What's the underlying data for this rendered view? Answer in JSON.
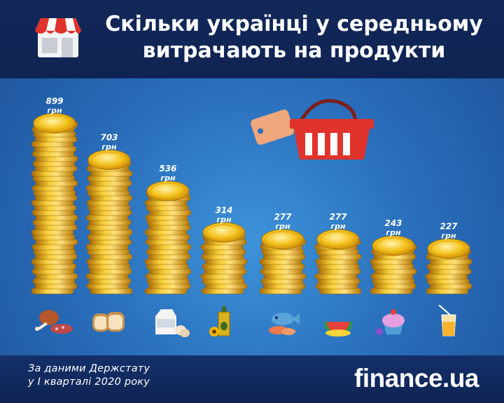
{
  "title_line1": "Скільки українці у середньому",
  "title_line2": "витрачають на продукти",
  "source_line1": "За даними Держстату",
  "source_line2": "у I кварталі 2020 року",
  "brand": "finance.ua",
  "colors": {
    "header_bg": "#0f2452",
    "background": "#2a6fbc",
    "coin": "#f2c215",
    "coin_edge": "#c98d06",
    "basket": "#e0332b"
  },
  "chart_data": {
    "type": "bar",
    "title": "Скільки українці у середньому витрачають на продукти",
    "unit": "грн",
    "categories": [
      "meat-icon",
      "bread-icon",
      "milk-icon",
      "oil-icon",
      "fish-icon",
      "fruit-icon",
      "sweets-icon",
      "drink-icon"
    ],
    "values": [
      899,
      703,
      536,
      314,
      277,
      277,
      243,
      227
    ],
    "value_labels": [
      "899",
      "703",
      "536",
      "314",
      "277",
      "277",
      "243",
      "227"
    ],
    "ylim": [
      0,
      900
    ]
  }
}
